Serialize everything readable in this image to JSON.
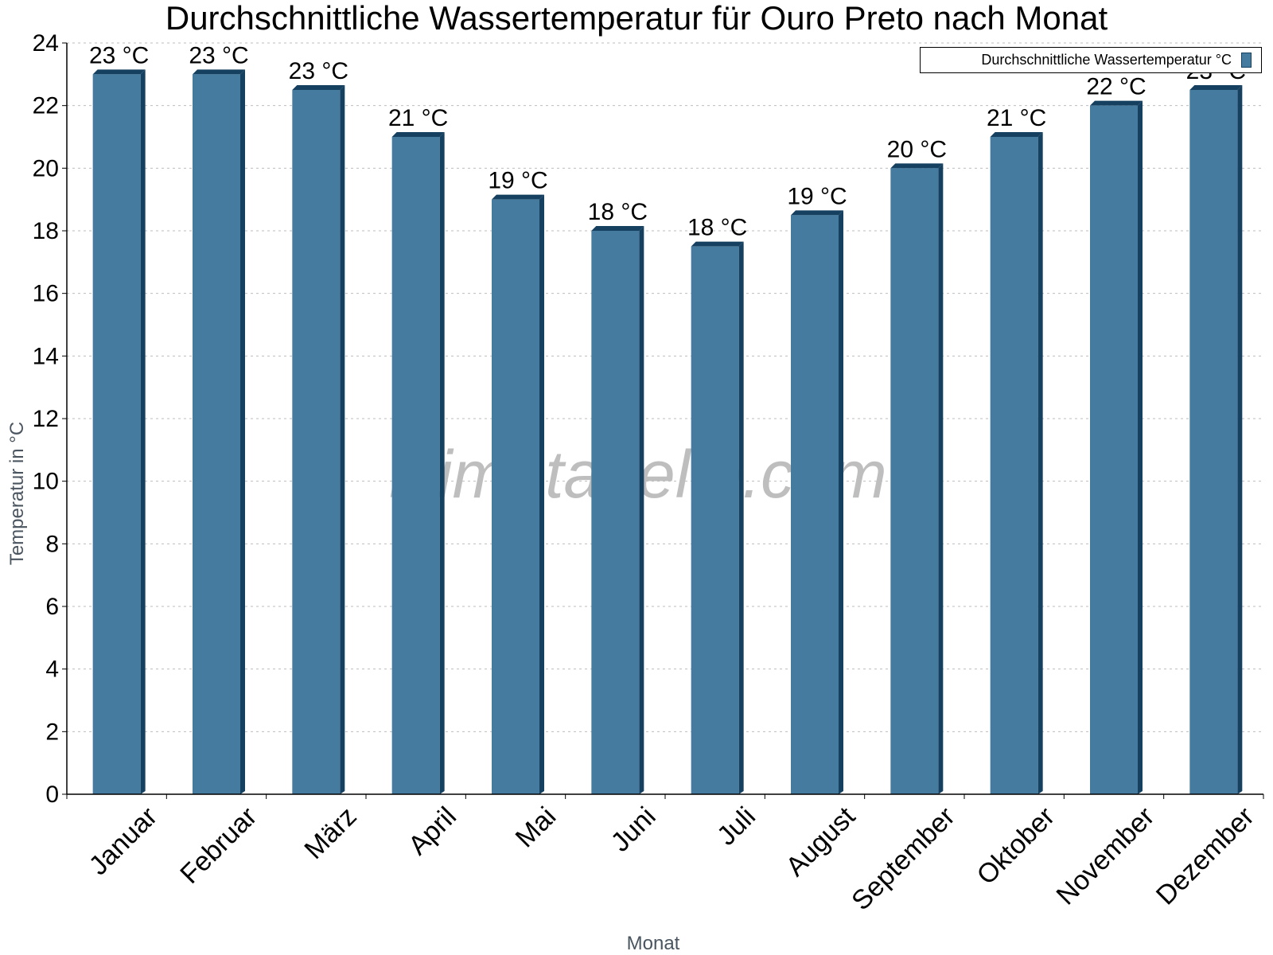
{
  "chart_data": {
    "type": "bar",
    "title": "Durchschnittliche Wassertemperatur für Ouro Preto nach Monat",
    "xlabel": "Monat",
    "ylabel": "Temperatur in °C",
    "ylim": [
      0,
      24
    ],
    "yticks": [
      0,
      2,
      4,
      6,
      8,
      10,
      12,
      14,
      16,
      18,
      20,
      22,
      24
    ],
    "grid": true,
    "legend_position": "top-right",
    "categories": [
      "Januar",
      "Februar",
      "März",
      "April",
      "Mai",
      "Juni",
      "Juli",
      "August",
      "September",
      "Oktober",
      "November",
      "Dezember"
    ],
    "series": [
      {
        "name": "Durchschnittliche Wassertemperatur °C",
        "values": [
          23,
          23,
          22.5,
          21,
          19,
          18,
          17.5,
          18.5,
          20,
          21,
          22,
          22.5
        ],
        "labels": [
          "23 °C",
          "23 °C",
          "23 °C",
          "21 °C",
          "19 °C",
          "18 °C",
          "18 °C",
          "19 °C",
          "20 °C",
          "21 °C",
          "22 °C",
          "23 °C"
        ]
      }
    ],
    "colors": {
      "bar": "#467ba0",
      "bar_edge": "#16405f",
      "grid": "#bdbdbd"
    }
  },
  "watermark": "klimatabelle.com"
}
